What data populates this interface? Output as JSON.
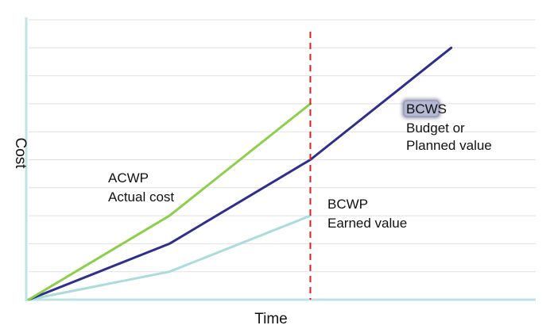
{
  "chart_data": {
    "type": "line",
    "title": "",
    "xlabel": "Time",
    "ylabel": "Cost",
    "grid": true,
    "xlim": [
      0,
      18
    ],
    "ylim": [
      0,
      10
    ],
    "series": [
      {
        "name": "BCWS",
        "color": "#2e2e8c",
        "x": [
          0,
          5,
          10,
          15
        ],
        "y": [
          0,
          2,
          5,
          9
        ]
      },
      {
        "name": "ACWP",
        "color": "#8ccf4a",
        "x": [
          0,
          5,
          10
        ],
        "y": [
          0,
          3,
          7
        ]
      },
      {
        "name": "BCWP",
        "color": "#aadcdc",
        "x": [
          0,
          5,
          10
        ],
        "y": [
          0,
          1,
          3
        ]
      }
    ],
    "status_date": 10,
    "status_line_color": "#e02020",
    "annotations": {
      "acwp": [
        "ACWP",
        "Actual cost"
      ],
      "bcwp": [
        "BCWP",
        "Earned value"
      ],
      "bcws": [
        "BCWS",
        "Budget or",
        "Planned value"
      ]
    }
  }
}
